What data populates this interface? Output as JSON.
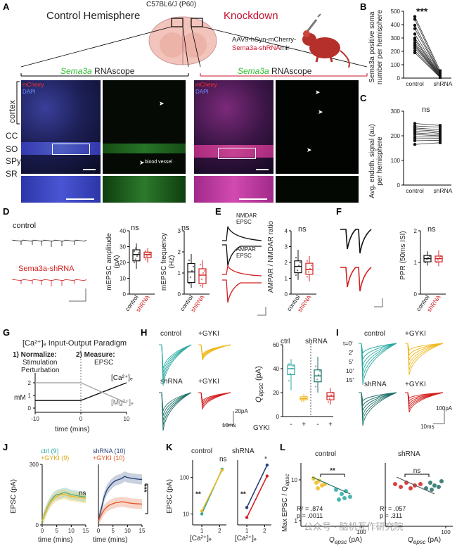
{
  "panels": {
    "A": "A",
    "B": "B",
    "C": "C",
    "D": "D",
    "E": "E",
    "F": "F",
    "G": "G",
    "H": "H",
    "I": "I",
    "J": "J",
    "K": "K",
    "L": "L"
  },
  "A": {
    "control_title": "Control Hemisphere",
    "mouse_label": "C57BL6/J (P60)",
    "knockdown_title": "Knockdown",
    "virus_line1": "AAV9-hSyn-mCherry-",
    "virus_line2": "Sema3a-shRNA",
    "virus_suffix": "mir",
    "rnascope_gene": "Sema3a",
    "rnascope_word": " RNAscope",
    "mcherry": "mCherry",
    "dapi": "DAPI",
    "layers": [
      "CC",
      "SO",
      "SPy",
      "SR"
    ],
    "cortex": "cortex",
    "blood_vessel": "blood vessel"
  },
  "B": {
    "ylabel": "Sema3a positive soma number per hemisphere",
    "sig": "***",
    "xcats": [
      "control",
      "shRNA"
    ],
    "yticks": [
      "0",
      "100",
      "200",
      "300",
      "400",
      "500"
    ]
  },
  "C": {
    "ylabel": "Avg. endoth. signal (au) per hemisphere",
    "sig": "ns",
    "xcats": [
      "control",
      "shRNA"
    ],
    "yticks": [
      "0",
      "100",
      "200",
      "300"
    ]
  },
  "D": {
    "control": "control",
    "shrna": "Sema3a-shRNA",
    "amp_ylabel": "mEPSC amplitude (pA)",
    "freq_ylabel": "mEPSC frequency (Hz)",
    "sig1": "ns",
    "sig2": "ns",
    "amp_ticks": [
      "0",
      "10",
      "20",
      "30",
      "40"
    ],
    "freq_ticks": [
      "0",
      "1",
      "2",
      "3"
    ],
    "xcats": [
      "control",
      "shRNA"
    ]
  },
  "E": {
    "nmdar": "NMDAR",
    "epsc1": "EPSC",
    "ampar": "AMPAR",
    "epsc2": "EPSC",
    "ylabel": "AMPAR / NMDAR ratio",
    "sig": "ns",
    "ticks": [
      "0",
      "1",
      "2",
      "3",
      "4"
    ],
    "xcats": [
      "control",
      "shRNA"
    ]
  },
  "F": {
    "ylabel": "PPR (50ms ISI)",
    "sig": "ns",
    "ticks": [
      "0",
      "1",
      "2"
    ],
    "xcats": [
      "control",
      "shRNA"
    ]
  },
  "G": {
    "title": "[Ca²⁺]ₑ Input-Output Paradigm",
    "step1a": "1) Normalize:",
    "step1b": "Stimulation",
    "step1c": "Perturbation",
    "step2a": "2) Measure:",
    "step2b": "EPSC",
    "ylabel": "mM",
    "ca": "[Ca²⁺]ₑ",
    "mg": "[Mg²⁺]ₑ",
    "xlabel": "time (mins)",
    "xticks": [
      "-10",
      "0",
      "10"
    ],
    "yticks": [
      "0",
      "1",
      "2"
    ]
  },
  "H": {
    "control": "control",
    "gyki1": "+GYKI",
    "shrna": "shRNA",
    "gyki2": "+GYKI",
    "scale_pa": "20pA",
    "scale_ms": "10ms",
    "ctrl": "ctrl",
    "shrna2": "shRNA",
    "ylabel": "Q",
    "ysub": "epsc",
    "yunit": " (pA)",
    "yticks": [
      "0",
      "20",
      "40",
      "60"
    ],
    "gyki_label": "GYKI",
    "minus": "-",
    "plus": "+"
  },
  "I": {
    "control": "control",
    "gyki1": "+GYKI",
    "shrna": "shRNA",
    "gyki2": "+GYKI",
    "times": [
      "t=0'",
      "2'",
      "5'",
      "10'",
      "15'"
    ],
    "scale_pa": "100pA",
    "scale_ms": "10ms"
  },
  "J": {
    "leg1a": "ctrl (9)",
    "leg1b": "+GYKI (9)",
    "leg2a": "shRNA (10)",
    "leg2b": "+GYKI (10)",
    "ylabel": "EPSC (pA)",
    "xlabel": "time (mins)",
    "yticks": [
      "0",
      "300"
    ],
    "xticks": [
      "0",
      "5",
      "10",
      "15"
    ],
    "sig1": "ns",
    "sig2": "***"
  },
  "K": {
    "title1": "control",
    "title2": "shRNA",
    "ylabel": "EPSC (pA)",
    "yticks": [
      "10",
      "100"
    ],
    "xticks": [
      "1",
      "2"
    ],
    "xlabel": "[Ca²⁺]ₑ",
    "sig_a": "**",
    "sig_b": "ns",
    "sig_c": "**",
    "sig_d": "*"
  },
  "L": {
    "title1": "control",
    "title2": "shRNA",
    "ylabel": "Max EPSC / Q",
    "ysub": "epsc",
    "yticks": [
      "1",
      "10"
    ],
    "xtick": "100",
    "xlabel": "Q",
    "xsub": "epsc",
    "xunit": " (pA)",
    "sig1": "**",
    "sig2": "ns",
    "r2a": "R² = .874",
    "pa": "p = .0011",
    "r2b": "R² = .057",
    "pb": "p = .311"
  },
  "watermark": "公众号 · 脑机互作研究院",
  "colors": {
    "control": "#222222",
    "shrna": "#d42020",
    "teal": "#2aa9a0",
    "darkteal": "#1d6e66",
    "yellow": "#f0b820",
    "red": "#d42020",
    "green": "#3cd04a",
    "blue": "#3a55d8",
    "navy": "#28427a",
    "orange": "#e05a28"
  },
  "chart_data": [
    {
      "panel": "B",
      "type": "scatter",
      "title": "",
      "ylabel": "Sema3a positive soma number per hemisphere",
      "categories": [
        "control",
        "shRNA"
      ],
      "ylim": [
        0,
        500
      ],
      "series": [
        {
          "name": "control",
          "values": [
            460,
            440,
            395,
            370,
            330,
            300,
            285,
            265,
            250,
            240,
            225,
            205,
            190
          ]
        },
        {
          "name": "shRNA",
          "values": [
            55,
            40,
            35,
            30,
            25,
            22,
            20,
            18,
            15,
            12,
            10,
            8,
            5
          ]
        }
      ]
    },
    {
      "panel": "C",
      "type": "scatter",
      "title": "",
      "ylabel": "Avg. endoth. signal (au) per hemisphere",
      "categories": [
        "control",
        "shRNA"
      ],
      "ylim": [
        0,
        300
      ],
      "series": [
        {
          "name": "control",
          "values": [
            250,
            240,
            232,
            225,
            220,
            212,
            205,
            195,
            188,
            180,
            165
          ]
        },
        {
          "name": "shRNA",
          "values": [
            242,
            235,
            225,
            218,
            210,
            205,
            200,
            195,
            190,
            182,
            172
          ]
        }
      ]
    },
    {
      "panel": "D-amp",
      "type": "bar",
      "title": "",
      "ylabel": "mEPSC amplitude (pA)",
      "categories": [
        "control",
        "shRNA"
      ],
      "ylim": [
        0,
        40
      ],
      "series": [
        {
          "name": "box",
          "values": [
            25,
            25
          ]
        }
      ]
    },
    {
      "panel": "D-freq",
      "type": "bar",
      "title": "",
      "ylabel": "mEPSC frequency (Hz)",
      "categories": [
        "control",
        "shRNA"
      ],
      "ylim": [
        0,
        3
      ],
      "series": [
        {
          "name": "box",
          "values": [
            1.05,
            0.9
          ]
        }
      ]
    },
    {
      "panel": "E",
      "type": "bar",
      "title": "",
      "ylabel": "AMPAR / NMDAR ratio",
      "categories": [
        "control",
        "shRNA"
      ],
      "ylim": [
        0,
        4
      ],
      "series": [
        {
          "name": "box",
          "values": [
            1.75,
            1.6
          ]
        }
      ]
    },
    {
      "panel": "F",
      "type": "bar",
      "title": "",
      "ylabel": "PPR (50ms ISI)",
      "categories": [
        "control",
        "shRNA"
      ],
      "ylim": [
        0,
        2
      ],
      "series": [
        {
          "name": "box",
          "values": [
            1.12,
            1.12
          ]
        }
      ]
    },
    {
      "panel": "H",
      "type": "bar",
      "title": "",
      "ylabel": "Qepsc (pA)",
      "categories": [
        "ctrl -",
        "ctrl +",
        "shRNA -",
        "shRNA +"
      ],
      "ylim": [
        0,
        60
      ],
      "series": [
        {
          "name": "box",
          "values": [
            40,
            15,
            34,
            17
          ]
        }
      ]
    },
    {
      "panel": "J",
      "type": "line",
      "title": "",
      "ylabel": "EPSC (pA)",
      "xlabel": "time (mins)",
      "xlim": [
        0,
        15
      ],
      "ylim": [
        0,
        300
      ],
      "x": [
        0,
        1,
        2,
        3,
        4,
        5,
        6,
        7,
        8,
        9,
        10,
        11,
        12,
        13,
        14,
        15
      ],
      "series": [
        {
          "name": "ctrl (9)",
          "values": [
            20,
            60,
            95,
            120,
            140,
            150,
            152,
            158,
            160,
            155,
            150,
            148,
            145,
            142,
            140,
            138
          ]
        },
        {
          "name": "+GYKI (9)",
          "values": [
            20,
            55,
            90,
            115,
            130,
            140,
            148,
            152,
            150,
            145,
            142,
            140,
            138,
            136,
            134,
            132
          ]
        },
        {
          "name": "shRNA (10)",
          "values": [
            25,
            80,
            140,
            175,
            195,
            210,
            220,
            225,
            230,
            240,
            235,
            232,
            230,
            228,
            226,
            225
          ]
        },
        {
          "name": "+GYKI (10)",
          "values": [
            20,
            50,
            75,
            90,
            100,
            105,
            110,
            112,
            115,
            113,
            110,
            108,
            106,
            105,
            104,
            103
          ]
        }
      ]
    },
    {
      "panel": "K",
      "type": "line",
      "title": "",
      "ylabel": "EPSC (pA)",
      "xlabel": "[Ca²⁺]e",
      "series": [
        {
          "name": "control ctrl",
          "x": [
            1,
            2.2
          ],
          "values": [
            10,
            170
          ]
        },
        {
          "name": "control +GYKI",
          "x": [
            1,
            2.2
          ],
          "values": [
            12,
            160
          ]
        },
        {
          "name": "shRNA",
          "x": [
            1,
            2.2
          ],
          "values": [
            15,
            220
          ]
        },
        {
          "name": "shRNA +GYKI",
          "x": [
            1,
            2.2
          ],
          "values": [
            8,
            110
          ]
        }
      ]
    },
    {
      "panel": "L",
      "type": "scatter",
      "title": "",
      "ylabel": "Max EPSC / Qepsc",
      "xlabel": "Qepsc (pA)",
      "series": [
        {
          "name": "control",
          "values": []
        },
        {
          "name": "shRNA",
          "values": []
        }
      ]
    }
  ]
}
